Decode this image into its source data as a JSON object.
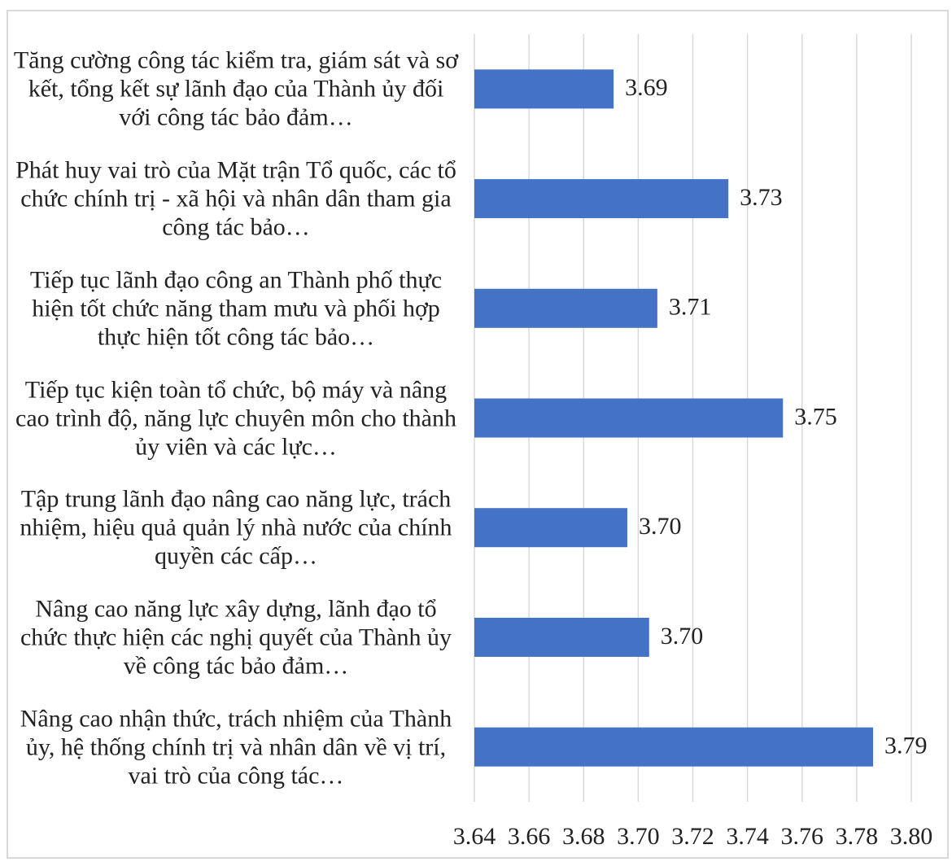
{
  "chart_data": {
    "type": "bar",
    "orientation": "horizontal",
    "categories": [
      "Tăng cường công tác kiểm tra, giám sát và sơ kết, tổng kết sự lãnh đạo của Thành ủy đối với công tác bảo đảm…",
      "Phát huy vai trò của Mặt trận Tổ quốc, các tổ chức chính trị - xã hội và nhân dân tham gia công tác bảo…",
      "Tiếp tục lãnh đạo công an Thành phố thực hiện tốt chức năng tham mưu và phối hợp thực hiện tốt công tác bảo…",
      "Tiếp tục kiện toàn tổ chức, bộ máy và nâng cao trình độ, năng lực chuyên môn cho thành ủy viên và các lực…",
      "Tập trung lãnh đạo nâng cao năng lực, trách nhiệm, hiệu quả quản lý nhà nước của chính quyền các cấp…",
      "Nâng cao năng lực xây dựng, lãnh đạo tổ chức thực hiện các nghị quyết của Thành ủy về công tác bảo đảm…",
      "Nâng cao nhận thức, trách nhiệm của Thành ủy, hệ thống chính trị và nhân dân về vị trí, vai trò của công tác…"
    ],
    "values": [
      3.691,
      3.733,
      3.707,
      3.753,
      3.696,
      3.704,
      3.786
    ],
    "value_labels": [
      "3.69",
      "3.73",
      "3.71",
      "3.75",
      "3.70",
      "3.70",
      "3.79"
    ],
    "color": "#4472c4",
    "xlim": [
      3.64,
      3.8
    ],
    "xticks": [
      3.64,
      3.66,
      3.68,
      {
        "value": 3.7,
        "label": "3.70"
      },
      3.72,
      3.74,
      3.76,
      3.78,
      {
        "value": 3.8,
        "label": "3.80"
      }
    ],
    "grid": true
  }
}
